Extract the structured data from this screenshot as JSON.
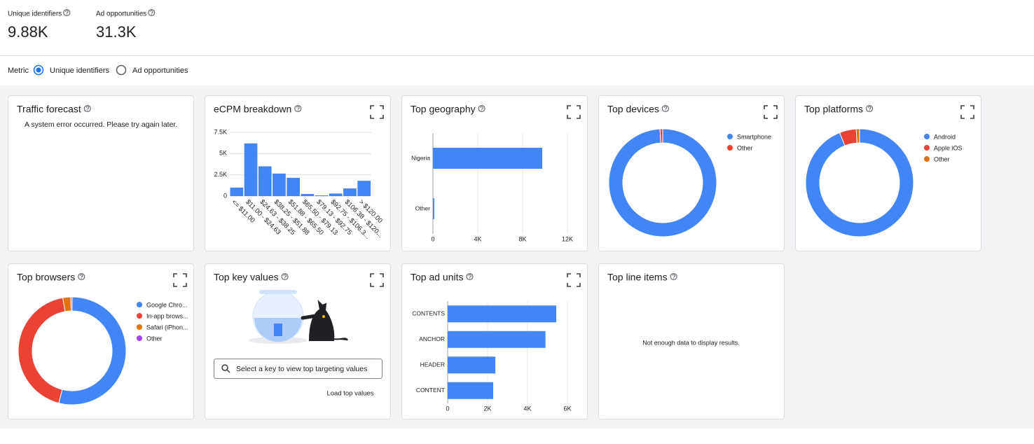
{
  "summary": [
    {
      "label": "Unique identifiers",
      "value": "9.88K"
    },
    {
      "label": "Ad opportunities",
      "value": "31.3K"
    }
  ],
  "metric": {
    "label": "Metric",
    "options": [
      "Unique identifiers",
      "Ad opportunities"
    ],
    "selected": 0
  },
  "cards": [
    {
      "title": "Traffic forecast",
      "message": "A system error occurred. Please try again later."
    },
    {
      "title": "eCPM breakdown",
      "type": "bar",
      "color": "#4285f4",
      "categories": [
        "<= $11.00",
        "$11.00 - $24.63",
        "$24.63 - $38.25",
        "$38.25 - $51.88",
        "$51.88 - $65.50",
        "$65.50 - $79.13",
        "$79.13 - $92.75",
        "$92.75 - $106.3...",
        "$106.38 - $120...",
        "> $120.00"
      ],
      "values": [
        1000,
        6200,
        3500,
        2650,
        2150,
        250,
        80,
        300,
        900,
        1800
      ],
      "ylim": [
        0,
        7500
      ],
      "yticks": [
        0,
        {
          "value": 2500,
          "label": "2.5K"
        },
        {
          "value": 5000,
          "label": "5K"
        },
        {
          "value": 7500,
          "label": "7.5K"
        }
      ]
    },
    {
      "title": "Top geography",
      "type": "hbar",
      "color": "#4285f4",
      "categories": [
        "Nigeria",
        "Other"
      ],
      "values": [
        9750,
        120
      ],
      "xlim": [
        0,
        12000
      ],
      "xticks": [
        0,
        {
          "value": 4000,
          "label": "4K"
        },
        {
          "value": 8000,
          "label": "8K"
        },
        {
          "value": 12000,
          "label": "12K"
        }
      ]
    },
    {
      "title": "Top devices",
      "type": "pie",
      "categories": [
        "Smartphone",
        "Other"
      ],
      "values": [
        99.2,
        0.8
      ],
      "colors": [
        "#4285f4",
        "#ea4335"
      ]
    },
    {
      "title": "Top platforms",
      "type": "pie",
      "categories": [
        "Android",
        "Apple iOS",
        "Other"
      ],
      "values": [
        94,
        5,
        1
      ],
      "colors": [
        "#4285f4",
        "#ea4335",
        "#e37400"
      ]
    },
    {
      "title": "Top browsers",
      "type": "pie",
      "categories": [
        "Google Chro...",
        "In-app brows...",
        "Safari (iPhon...",
        "Other"
      ],
      "values": [
        54,
        43.2,
        2.4,
        0.4
      ],
      "colors": [
        "#4285f4",
        "#ea4335",
        "#e37400",
        "#a142f4"
      ]
    },
    {
      "title": "Top key values",
      "search_placeholder": "Select a key to view top targeting values",
      "button": "Load top values"
    },
    {
      "title": "Top ad units",
      "type": "hbar",
      "color": "#4285f4",
      "categories": [
        "CONTENTS",
        "ANCHOR",
        "HEADER",
        "CONTENT"
      ],
      "values": [
        5440,
        4900,
        2390,
        2280
      ],
      "xlim": [
        0,
        6000
      ],
      "xticks": [
        0,
        {
          "value": 2000,
          "label": "2K"
        },
        {
          "value": 4000,
          "label": "4K"
        },
        {
          "value": 6000,
          "label": "6K"
        }
      ]
    },
    {
      "title": "Top line items",
      "message": "Not enough data to display results."
    }
  ]
}
